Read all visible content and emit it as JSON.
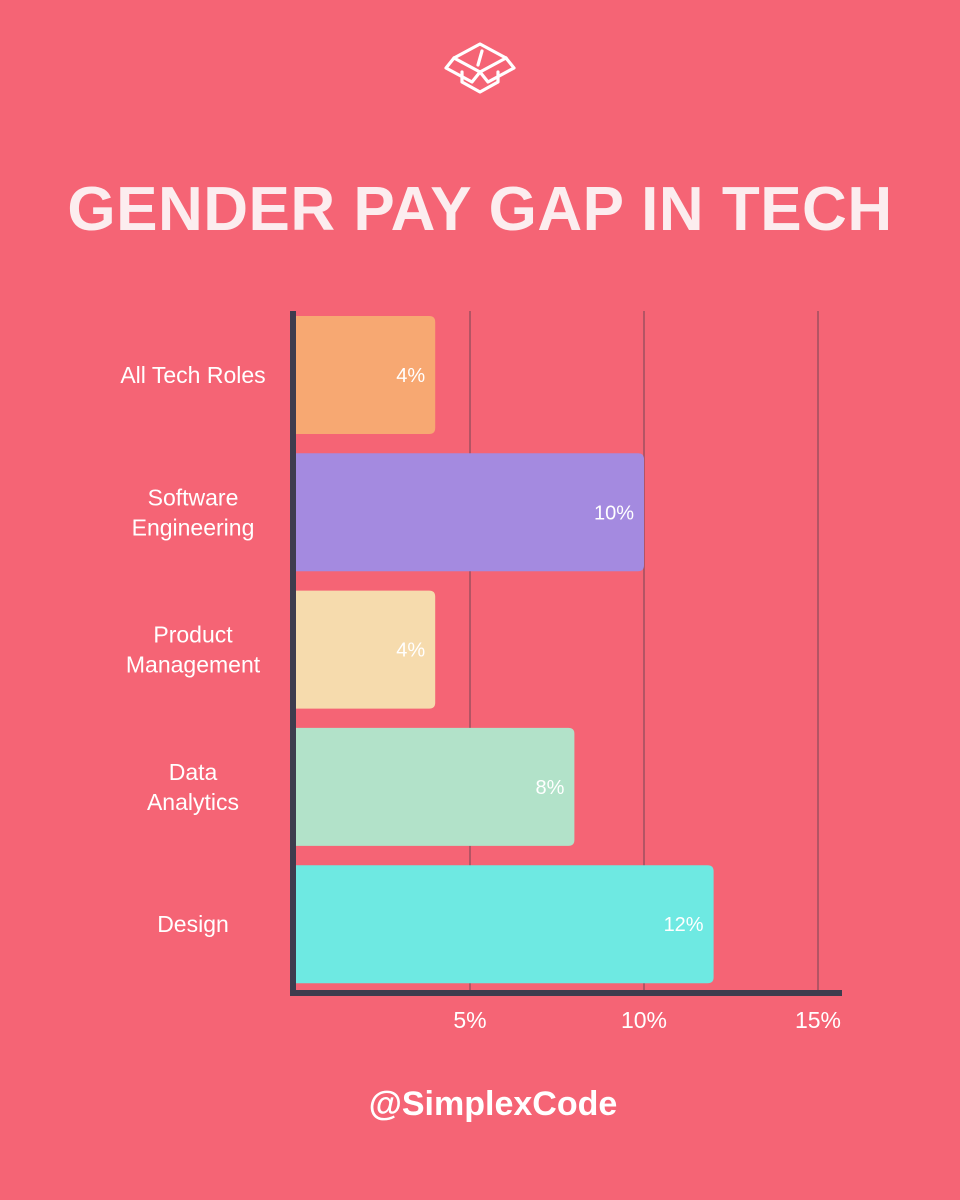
{
  "header": {
    "logo_icon": "code-box-icon",
    "title": "GENDER PAY GAP IN TECH"
  },
  "chart_data": {
    "type": "bar",
    "orientation": "horizontal",
    "title": "GENDER PAY GAP IN TECH",
    "categories": [
      [
        "All Tech Roles"
      ],
      [
        "Software",
        "Engineering"
      ],
      [
        "Product",
        "Management"
      ],
      [
        "Data",
        "Analytics"
      ],
      [
        "Design"
      ]
    ],
    "values": [
      4,
      10,
      4,
      8,
      12
    ],
    "value_labels": [
      "4%",
      "10%",
      "4%",
      "8%",
      "12%"
    ],
    "colors": [
      "#F7A872",
      "#A48AE0",
      "#F6DBAD",
      "#B2E2C9",
      "#6EE9E2"
    ],
    "x_ticks": [
      5,
      10,
      15
    ],
    "x_tick_labels": [
      "5%",
      "10%",
      "15%"
    ],
    "xlim": [
      0,
      15.5
    ],
    "grid": true,
    "axis_color": "#3E3C4E",
    "grid_color": "#9E4F5E"
  },
  "footer": {
    "handle": "@SimplexCode"
  }
}
